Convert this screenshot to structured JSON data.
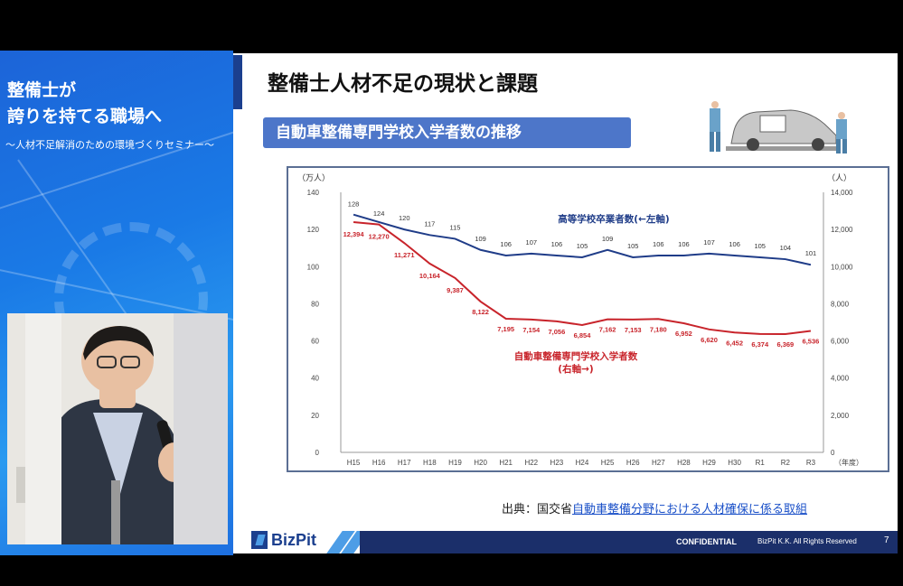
{
  "seminar": {
    "title_line1": "整備士が",
    "title_line2": "誇りを持てる職場へ",
    "subtitle": "〜人材不足解消のための環境づくりセミナー〜"
  },
  "slide": {
    "title": "整備士人材不足の現状と課題",
    "subtitle": "自動車整備専門学校入学者数の推移",
    "source_prefix": "出典：国交省",
    "source_link": "自動車整備分野における人材確保に係る取組",
    "page_number": "7"
  },
  "footer": {
    "logo": "BizPit",
    "confidential": "CONFIDENTIAL",
    "rights": "BizPit K.K. All Rights Reserved"
  },
  "colors": {
    "left_series": "#1f3c88",
    "right_series": "#c8242b",
    "accent": "#1b3f8e",
    "subtitle_box": "#4d76c9"
  },
  "chart_data": {
    "type": "line",
    "categories": [
      "H15",
      "H16",
      "H17",
      "H18",
      "H19",
      "H20",
      "H21",
      "H22",
      "H23",
      "H24",
      "H25",
      "H26",
      "H27",
      "H28",
      "H29",
      "H30",
      "R1",
      "R2",
      "R3"
    ],
    "x_unit_label": "（年度）",
    "y_left": {
      "unit_label": "（万人）",
      "ticks": [
        "140",
        "120",
        "100",
        "80",
        "60",
        "40",
        "20",
        "0"
      ],
      "range": [
        0,
        140
      ]
    },
    "y_right": {
      "unit_label": "（人）",
      "ticks": [
        "14,000",
        "12,000",
        "10,000",
        "8,000",
        "6,000",
        "4,000",
        "2,000",
        "0"
      ],
      "range": [
        0,
        14000
      ]
    },
    "series": [
      {
        "name": "高等学校卒業者数(←左軸)",
        "axis": "left",
        "values": [
          128,
          124,
          120,
          117,
          115,
          109,
          106,
          107,
          106,
          105,
          109,
          105,
          106,
          106,
          107,
          106,
          105,
          104,
          101
        ],
        "labels": [
          "128",
          "124",
          "120",
          "117",
          "115",
          "109",
          "106",
          "107",
          "106",
          "105",
          "109",
          "105",
          "106",
          "106",
          "107",
          "106",
          "105",
          "104",
          "101"
        ]
      },
      {
        "name": "自動車整備専門学校入学者数",
        "name_line2": "(右軸→)",
        "axis": "right",
        "values": [
          12394,
          12270,
          11271,
          10164,
          9387,
          8122,
          7195,
          7154,
          7056,
          6854,
          7162,
          7153,
          7180,
          6952,
          6620,
          6452,
          6374,
          6369,
          6536
        ],
        "labels": [
          "12,394",
          "12,270",
          "11,271",
          "10,164",
          "9,387",
          "8,122",
          "7,195",
          "7,154",
          "7,056",
          "6,854",
          "7,162",
          "7,153",
          "7,180",
          "6,952",
          "6,620",
          "6,452",
          "6,374",
          "6,369",
          "6,536"
        ]
      }
    ]
  }
}
